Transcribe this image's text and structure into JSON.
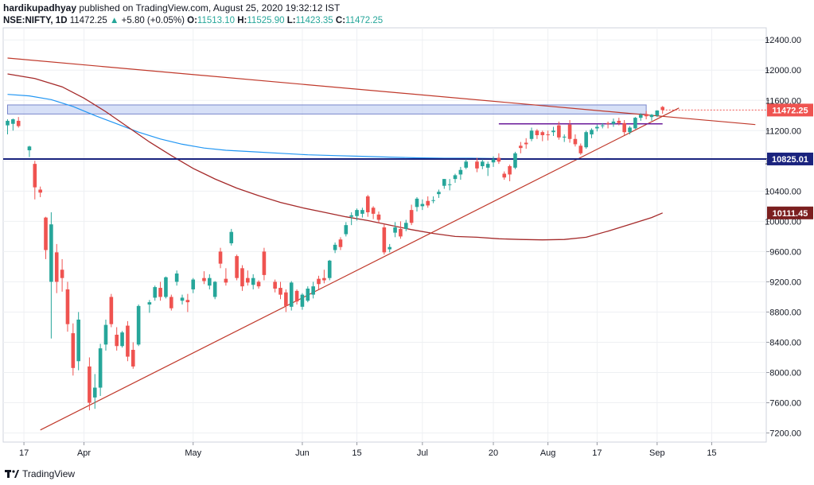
{
  "header": {
    "author": "hardikupadhyay",
    "published": "published on TradingView.com, August 25, 2020 19:32:12 IST",
    "symbol": "NSE:NIFTY, 1D",
    "last": "11472.25",
    "change_arrow": "▲",
    "change": "+5.80 (+0.05%)",
    "o_label": "O:",
    "o_value": "11513.10",
    "h_label": "H:",
    "h_value": "11525.90",
    "l_label": "L:",
    "l_value": "11423.35",
    "c_label": "C:",
    "c_value": "11472.25"
  },
  "footer": {
    "brand": "TradingView",
    "logo_icon": "tradingview-logo-icon"
  },
  "colors": {
    "up": "#26a69a",
    "down": "#ef5350",
    "sma_long": "#a52a2a",
    "sma_mid": "#2196f3",
    "trendline": "#c0392b",
    "support": "#1a237e",
    "short_line": "#6a1b9a",
    "zone": "#b7c6f0"
  },
  "chart_data": {
    "type": "candlestick",
    "title": "",
    "xlabel": "",
    "ylabel": "",
    "ylim": [
      7080,
      12560
    ],
    "y_ticks": [
      7200,
      7600,
      8000,
      8400,
      8800,
      9200,
      9600,
      10000,
      10400,
      10800,
      11200,
      11600,
      12000,
      12400
    ],
    "x_ticks": [
      {
        "label": "17",
        "d": 3
      },
      {
        "label": "Apr",
        "d": 14
      },
      {
        "label": "May",
        "d": 34
      },
      {
        "label": "Jun",
        "d": 54
      },
      {
        "label": "15",
        "d": 64
      },
      {
        "label": "Jul",
        "d": 76
      },
      {
        "label": "20",
        "d": 89
      },
      {
        "label": "Aug",
        "d": 99
      },
      {
        "label": "17",
        "d": 108
      },
      {
        "label": "Sep",
        "d": 119
      },
      {
        "label": "15",
        "d": 129
      }
    ],
    "price_labels": [
      {
        "text": "11472.25",
        "value": 11472.25,
        "color": "#ef5350"
      },
      {
        "text": "10825.01",
        "value": 10825.01,
        "color": "#1a237e"
      },
      {
        "text": "10111.45",
        "value": 10111.45,
        "color": "#7b1f1f"
      }
    ],
    "candles": [
      {
        "d": 0,
        "o": 11270,
        "h": 11350,
        "l": 11150,
        "c": 11330
      },
      {
        "d": 1,
        "o": 11290,
        "h": 11360,
        "l": 11200,
        "c": 11350
      },
      {
        "d": 2,
        "o": 11330,
        "h": 11380,
        "l": 11240,
        "c": 11260
      },
      {
        "d": 4,
        "o": 10940,
        "h": 11000,
        "l": 10850,
        "c": 10990
      },
      {
        "d": 5,
        "o": 10760,
        "h": 10800,
        "l": 10290,
        "c": 10450
      },
      {
        "d": 6,
        "o": 10420,
        "h": 10460,
        "l": 10320,
        "c": 10380
      },
      {
        "d": 7,
        "o": 10050,
        "h": 10060,
        "l": 9500,
        "c": 9620
      },
      {
        "d": 8,
        "o": 9200,
        "h": 10120,
        "l": 8450,
        "c": 9960
      },
      {
        "d": 9,
        "o": 9590,
        "h": 9700,
        "l": 9050,
        "c": 9200
      },
      {
        "d": 10,
        "o": 9360,
        "h": 9500,
        "l": 9070,
        "c": 9250
      },
      {
        "d": 11,
        "o": 9100,
        "h": 9200,
        "l": 8540,
        "c": 8640
      },
      {
        "d": 12,
        "o": 8520,
        "h": 8650,
        "l": 7960,
        "c": 8060
      },
      {
        "d": 13,
        "o": 8150,
        "h": 8800,
        "l": 8030,
        "c": 8700
      },
      {
        "d": 15,
        "o": 8080,
        "h": 8200,
        "l": 7500,
        "c": 7600
      },
      {
        "d": 16,
        "o": 7670,
        "h": 7980,
        "l": 7520,
        "c": 7800
      },
      {
        "d": 17,
        "o": 7800,
        "h": 8380,
        "l": 7690,
        "c": 8320
      },
      {
        "d": 18,
        "o": 8370,
        "h": 8700,
        "l": 8290,
        "c": 8630
      },
      {
        "d": 19,
        "o": 9000,
        "h": 9040,
        "l": 8600,
        "c": 8640
      },
      {
        "d": 20,
        "o": 8500,
        "h": 8600,
        "l": 8290,
        "c": 8350
      },
      {
        "d": 21,
        "o": 8350,
        "h": 8550,
        "l": 8330,
        "c": 8530
      },
      {
        "d": 22,
        "o": 8620,
        "h": 8680,
        "l": 8150,
        "c": 8210
      },
      {
        "d": 23,
        "o": 8300,
        "h": 8400,
        "l": 8050,
        "c": 8080
      },
      {
        "d": 24,
        "o": 8370,
        "h": 8900,
        "l": 8350,
        "c": 8880
      },
      {
        "d": 26,
        "o": 8900,
        "h": 8960,
        "l": 8790,
        "c": 8930
      },
      {
        "d": 27,
        "o": 8990,
        "h": 9150,
        "l": 8950,
        "c": 9130
      },
      {
        "d": 28,
        "o": 9120,
        "h": 9200,
        "l": 8950,
        "c": 9000
      },
      {
        "d": 29,
        "o": 9000,
        "h": 9270,
        "l": 8980,
        "c": 9260
      },
      {
        "d": 30,
        "o": 9000,
        "h": 9030,
        "l": 8820,
        "c": 8850
      },
      {
        "d": 31,
        "o": 9200,
        "h": 9350,
        "l": 9150,
        "c": 9310
      },
      {
        "d": 32,
        "o": 8950,
        "h": 9030,
        "l": 8900,
        "c": 8990
      },
      {
        "d": 33,
        "o": 8960,
        "h": 9040,
        "l": 8800,
        "c": 8930
      },
      {
        "d": 34,
        "o": 9100,
        "h": 9250,
        "l": 9050,
        "c": 9230
      },
      {
        "d": 36,
        "o": 9250,
        "h": 9340,
        "l": 9170,
        "c": 9210
      },
      {
        "d": 37,
        "o": 9150,
        "h": 9300,
        "l": 9100,
        "c": 9250
      },
      {
        "d": 38,
        "o": 9000,
        "h": 9210,
        "l": 8970,
        "c": 9200
      },
      {
        "d": 39,
        "o": 9600,
        "h": 9650,
        "l": 9380,
        "c": 9440
      },
      {
        "d": 40,
        "o": 9240,
        "h": 9380,
        "l": 9150,
        "c": 9190
      },
      {
        "d": 41,
        "o": 9710,
        "h": 9900,
        "l": 9680,
        "c": 9860
      },
      {
        "d": 42,
        "o": 9540,
        "h": 9560,
        "l": 9220,
        "c": 9250
      },
      {
        "d": 43,
        "o": 9380,
        "h": 9420,
        "l": 9080,
        "c": 9140
      },
      {
        "d": 44,
        "o": 9250,
        "h": 9350,
        "l": 9150,
        "c": 9190
      },
      {
        "d": 45,
        "o": 9160,
        "h": 9300,
        "l": 9100,
        "c": 9250
      },
      {
        "d": 46,
        "o": 9200,
        "h": 9220,
        "l": 9110,
        "c": 9140
      },
      {
        "d": 47,
        "o": 9600,
        "h": 9650,
        "l": 9220,
        "c": 9290
      },
      {
        "d": 49,
        "o": 9200,
        "h": 9230,
        "l": 9060,
        "c": 9110
      },
      {
        "d": 50,
        "o": 9120,
        "h": 9200,
        "l": 8970,
        "c": 9030
      },
      {
        "d": 51,
        "o": 9060,
        "h": 9100,
        "l": 8800,
        "c": 8880
      },
      {
        "d": 52,
        "o": 8870,
        "h": 9210,
        "l": 8820,
        "c": 9190
      },
      {
        "d": 53,
        "o": 9080,
        "h": 9100,
        "l": 8900,
        "c": 8940
      },
      {
        "d": 54,
        "o": 8870,
        "h": 9050,
        "l": 8830,
        "c": 9030
      },
      {
        "d": 55,
        "o": 8950,
        "h": 9140,
        "l": 8930,
        "c": 9110
      },
      {
        "d": 56,
        "o": 9030,
        "h": 9200,
        "l": 8980,
        "c": 9140
      },
      {
        "d": 57,
        "o": 9240,
        "h": 9280,
        "l": 9100,
        "c": 9170
      },
      {
        "d": 58,
        "o": 9250,
        "h": 9360,
        "l": 9180,
        "c": 9220
      },
      {
        "d": 59,
        "o": 9250,
        "h": 9490,
        "l": 9220,
        "c": 9480
      },
      {
        "d": 60,
        "o": 9620,
        "h": 9720,
        "l": 9580,
        "c": 9690
      },
      {
        "d": 61,
        "o": 9760,
        "h": 9790,
        "l": 9620,
        "c": 9660
      },
      {
        "d": 62,
        "o": 9830,
        "h": 9990,
        "l": 9800,
        "c": 9950
      },
      {
        "d": 63,
        "o": 10060,
        "h": 10120,
        "l": 9950,
        "c": 10080
      },
      {
        "d": 64,
        "o": 10070,
        "h": 10170,
        "l": 10010,
        "c": 10150
      },
      {
        "d": 65,
        "o": 10100,
        "h": 10180,
        "l": 10050,
        "c": 10150
      },
      {
        "d": 66,
        "o": 10330,
        "h": 10350,
        "l": 10060,
        "c": 10120
      },
      {
        "d": 67,
        "o": 10180,
        "h": 10200,
        "l": 10030,
        "c": 10100
      },
      {
        "d": 68,
        "o": 10090,
        "h": 10130,
        "l": 9980,
        "c": 10020
      },
      {
        "d": 69,
        "o": 9920,
        "h": 9960,
        "l": 9560,
        "c": 9590
      },
      {
        "d": 70,
        "o": 9630,
        "h": 9700,
        "l": 9590,
        "c": 9660
      },
      {
        "d": 71,
        "o": 9850,
        "h": 9990,
        "l": 9790,
        "c": 9920
      },
      {
        "d": 72,
        "o": 9900,
        "h": 10000,
        "l": 9770,
        "c": 9800
      },
      {
        "d": 73,
        "o": 9900,
        "h": 10020,
        "l": 9870,
        "c": 9980
      },
      {
        "d": 74,
        "o": 10150,
        "h": 10220,
        "l": 9950,
        "c": 9980
      },
      {
        "d": 75,
        "o": 10190,
        "h": 10320,
        "l": 10130,
        "c": 10300
      },
      {
        "d": 76,
        "o": 10200,
        "h": 10290,
        "l": 10150,
        "c": 10230
      },
      {
        "d": 77,
        "o": 10270,
        "h": 10330,
        "l": 10180,
        "c": 10210
      },
      {
        "d": 78,
        "o": 10270,
        "h": 10330,
        "l": 10240,
        "c": 10280
      },
      {
        "d": 79,
        "o": 10360,
        "h": 10420,
        "l": 10310,
        "c": 10390
      },
      {
        "d": 80,
        "o": 10470,
        "h": 10560,
        "l": 10430,
        "c": 10560
      },
      {
        "d": 81,
        "o": 10480,
        "h": 10560,
        "l": 10410,
        "c": 10490
      },
      {
        "d": 82,
        "o": 10560,
        "h": 10630,
        "l": 10510,
        "c": 10610
      },
      {
        "d": 83,
        "o": 10620,
        "h": 10720,
        "l": 10550,
        "c": 10680
      },
      {
        "d": 84,
        "o": 10710,
        "h": 10820,
        "l": 10690,
        "c": 10790
      },
      {
        "d": 86,
        "o": 10790,
        "h": 10840,
        "l": 10650,
        "c": 10700
      },
      {
        "d": 87,
        "o": 10730,
        "h": 10820,
        "l": 10690,
        "c": 10790
      },
      {
        "d": 88,
        "o": 10710,
        "h": 10790,
        "l": 10600,
        "c": 10760
      },
      {
        "d": 89,
        "o": 10780,
        "h": 10860,
        "l": 10720,
        "c": 10820
      },
      {
        "d": 90,
        "o": 10840,
        "h": 10900,
        "l": 10760,
        "c": 10790
      },
      {
        "d": 91,
        "o": 10630,
        "h": 10660,
        "l": 10550,
        "c": 10580
      },
      {
        "d": 92,
        "o": 10730,
        "h": 10750,
        "l": 10530,
        "c": 10620
      },
      {
        "d": 93,
        "o": 10710,
        "h": 10920,
        "l": 10690,
        "c": 10900
      },
      {
        "d": 94,
        "o": 11000,
        "h": 11050,
        "l": 10900,
        "c": 10970
      },
      {
        "d": 95,
        "o": 11040,
        "h": 11100,
        "l": 10960,
        "c": 11020
      },
      {
        "d": 96,
        "o": 11090,
        "h": 11240,
        "l": 11060,
        "c": 11200
      },
      {
        "d": 97,
        "o": 11200,
        "h": 11220,
        "l": 11090,
        "c": 11140
      },
      {
        "d": 98,
        "o": 11180,
        "h": 11200,
        "l": 11060,
        "c": 11140
      },
      {
        "d": 99,
        "o": 11150,
        "h": 11200,
        "l": 11070,
        "c": 11140
      },
      {
        "d": 100,
        "o": 11180,
        "h": 11250,
        "l": 11130,
        "c": 11200
      },
      {
        "d": 101,
        "o": 11270,
        "h": 11320,
        "l": 11080,
        "c": 11110
      },
      {
        "d": 102,
        "o": 11110,
        "h": 11150,
        "l": 11050,
        "c": 11120
      },
      {
        "d": 103,
        "o": 11280,
        "h": 11340,
        "l": 11040,
        "c": 11090
      },
      {
        "d": 104,
        "o": 11090,
        "h": 11150,
        "l": 10990,
        "c": 11020
      },
      {
        "d": 105,
        "o": 11000,
        "h": 11030,
        "l": 10880,
        "c": 10900
      },
      {
        "d": 106,
        "o": 10980,
        "h": 11200,
        "l": 10960,
        "c": 11180
      },
      {
        "d": 107,
        "o": 11150,
        "h": 11230,
        "l": 11100,
        "c": 11210
      },
      {
        "d": 108,
        "o": 11230,
        "h": 11280,
        "l": 11190,
        "c": 11250
      },
      {
        "d": 109,
        "o": 11260,
        "h": 11300,
        "l": 11230,
        "c": 11270
      },
      {
        "d": 110,
        "o": 11300,
        "h": 11320,
        "l": 11230,
        "c": 11290
      },
      {
        "d": 111,
        "o": 11290,
        "h": 11360,
        "l": 11250,
        "c": 11320
      },
      {
        "d": 112,
        "o": 11330,
        "h": 11370,
        "l": 11270,
        "c": 11300
      },
      {
        "d": 113,
        "o": 11300,
        "h": 11340,
        "l": 11140,
        "c": 11180
      },
      {
        "d": 114,
        "o": 11180,
        "h": 11260,
        "l": 11150,
        "c": 11240
      },
      {
        "d": 115,
        "o": 11230,
        "h": 11380,
        "l": 11220,
        "c": 11370
      },
      {
        "d": 116,
        "o": 11370,
        "h": 11430,
        "l": 11330,
        "c": 11410
      },
      {
        "d": 117,
        "o": 11420,
        "h": 11460,
        "l": 11350,
        "c": 11390
      },
      {
        "d": 118,
        "o": 11380,
        "h": 11420,
        "l": 11330,
        "c": 11410
      },
      {
        "d": 119,
        "o": 11400,
        "h": 11470,
        "l": 11380,
        "c": 11466
      },
      {
        "d": 120,
        "o": 11513.1,
        "h": 11525.9,
        "l": 11423.35,
        "c": 11472.25
      }
    ],
    "overlays": {
      "long_ma": [
        [
          0,
          11950
        ],
        [
          5,
          11890
        ],
        [
          10,
          11780
        ],
        [
          14,
          11630
        ],
        [
          18,
          11450
        ],
        [
          22,
          11250
        ],
        [
          26,
          11050
        ],
        [
          30,
          10870
        ],
        [
          34,
          10700
        ],
        [
          38,
          10560
        ],
        [
          42,
          10440
        ],
        [
          46,
          10340
        ],
        [
          50,
          10250
        ],
        [
          54,
          10180
        ],
        [
          58,
          10120
        ],
        [
          62,
          10060
        ],
        [
          66,
          10010
        ],
        [
          70,
          9950
        ],
        [
          74,
          9890
        ],
        [
          78,
          9840
        ],
        [
          82,
          9800
        ],
        [
          86,
          9790
        ],
        [
          90,
          9770
        ],
        [
          94,
          9760
        ],
        [
          98,
          9755
        ],
        [
          102,
          9760
        ],
        [
          106,
          9790
        ],
        [
          110,
          9870
        ],
        [
          114,
          9960
        ],
        [
          118,
          10050
        ],
        [
          120,
          10111.45
        ]
      ],
      "mid_ma": [
        [
          0,
          11680
        ],
        [
          4,
          11660
        ],
        [
          8,
          11610
        ],
        [
          12,
          11520
        ],
        [
          16,
          11400
        ],
        [
          20,
          11290
        ],
        [
          24,
          11180
        ],
        [
          28,
          11090
        ],
        [
          32,
          11020
        ],
        [
          36,
          10970
        ],
        [
          40,
          10940
        ],
        [
          45,
          10920
        ],
        [
          50,
          10900
        ],
        [
          55,
          10880
        ],
        [
          60,
          10870
        ],
        [
          65,
          10860
        ],
        [
          70,
          10850
        ],
        [
          75,
          10840
        ],
        [
          80,
          10835
        ],
        [
          85,
          10835
        ],
        [
          90,
          10830
        ],
        [
          95,
          10828
        ],
        [
          100,
          10826
        ],
        [
          105,
          10825
        ],
        [
          110,
          10830
        ],
        [
          113,
          10825
        ]
      ],
      "downtrend": [
        [
          0,
          12160
        ],
        [
          137,
          11280
        ]
      ],
      "uptrend": [
        [
          6,
          7240
        ],
        [
          123,
          11500
        ]
      ],
      "support": 10825.01,
      "short_resistance": {
        "from": 90,
        "to": 120,
        "value": 11290
      },
      "zone": {
        "from": 0,
        "to": 117,
        "low": 11420,
        "high": 11540
      },
      "last_price_line": 11472.25
    }
  }
}
